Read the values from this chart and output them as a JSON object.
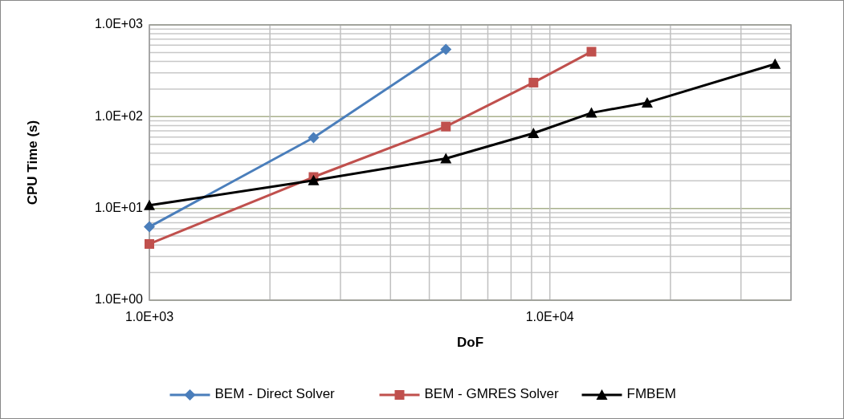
{
  "chart_data": {
    "type": "line",
    "xlabel": "DoF",
    "ylabel": "CPU Time (s)",
    "log": "xy",
    "grid": true,
    "legend": "bottom",
    "xlim": [
      1000,
      40000
    ],
    "ylim": [
      1,
      1000
    ],
    "xticks": [
      {
        "value": 1000,
        "label": "1.0E+03"
      },
      {
        "value": 2000,
        "label": null
      },
      {
        "value": 3000,
        "label": null
      },
      {
        "value": 4000,
        "label": null
      },
      {
        "value": 5000,
        "label": null
      },
      {
        "value": 6000,
        "label": null
      },
      {
        "value": 7000,
        "label": null
      },
      {
        "value": 8000,
        "label": null
      },
      {
        "value": 9000,
        "label": null
      },
      {
        "value": 10000,
        "label": "1.0E+04"
      },
      {
        "value": 20000,
        "label": null
      },
      {
        "value": 30000,
        "label": null
      },
      {
        "value": 40000,
        "label": null
      }
    ],
    "yticks": [
      {
        "value": 1,
        "label": "1.0E+00"
      },
      {
        "value": 2,
        "label": null
      },
      {
        "value": 3,
        "label": null
      },
      {
        "value": 4,
        "label": null
      },
      {
        "value": 5,
        "label": null
      },
      {
        "value": 6,
        "label": null
      },
      {
        "value": 7,
        "label": null
      },
      {
        "value": 8,
        "label": null
      },
      {
        "value": 9,
        "label": null
      },
      {
        "value": 10,
        "label": "1.0E+01"
      },
      {
        "value": 20,
        "label": null
      },
      {
        "value": 30,
        "label": null
      },
      {
        "value": 40,
        "label": null
      },
      {
        "value": 50,
        "label": null
      },
      {
        "value": 60,
        "label": null
      },
      {
        "value": 70,
        "label": null
      },
      {
        "value": 80,
        "label": null
      },
      {
        "value": 90,
        "label": null
      },
      {
        "value": 100,
        "label": "1.0E+02"
      },
      {
        "value": 200,
        "label": null
      },
      {
        "value": 300,
        "label": null
      },
      {
        "value": 400,
        "label": null
      },
      {
        "value": 500,
        "label": null
      },
      {
        "value": 600,
        "label": null
      },
      {
        "value": 700,
        "label": null
      },
      {
        "value": 800,
        "label": null
      },
      {
        "value": 900,
        "label": null
      },
      {
        "value": 1000,
        "label": "1.0E+03"
      }
    ],
    "series": [
      {
        "name": "BEM - Direct Solver",
        "color": "#4a7ebb",
        "marker": "diamond",
        "x": [
          1000,
          2570,
          5500
        ],
        "values": [
          6.3,
          59,
          540
        ]
      },
      {
        "name": "BEM - GMRES Solver",
        "color": "#c0504d",
        "marker": "square",
        "x": [
          1000,
          2570,
          5500,
          9100,
          12700
        ],
        "values": [
          4.1,
          22,
          78,
          235,
          510
        ]
      },
      {
        "name": "FMBEM",
        "color": "#000000",
        "marker": "triangle",
        "x": [
          1000,
          2570,
          5500,
          9100,
          12700,
          17500,
          36500
        ],
        "values": [
          10.8,
          20.2,
          35,
          66,
          110,
          142,
          375
        ]
      }
    ]
  }
}
